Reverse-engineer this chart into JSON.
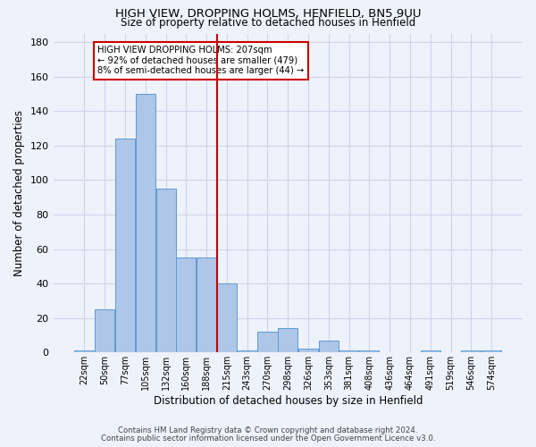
{
  "title": "HIGH VIEW, DROPPING HOLMS, HENFIELD, BN5 9UU",
  "subtitle": "Size of property relative to detached houses in Henfield",
  "xlabel": "Distribution of detached houses by size in Henfield",
  "ylabel": "Number of detached properties",
  "footer1": "Contains HM Land Registry data © Crown copyright and database right 2024.",
  "footer2": "Contains public sector information licensed under the Open Government Licence v3.0.",
  "bin_labels": [
    "22sqm",
    "50sqm",
    "77sqm",
    "105sqm",
    "132sqm",
    "160sqm",
    "188sqm",
    "215sqm",
    "243sqm",
    "270sqm",
    "298sqm",
    "326sqm",
    "353sqm",
    "381sqm",
    "408sqm",
    "436sqm",
    "464sqm",
    "491sqm",
    "519sqm",
    "546sqm",
    "574sqm"
  ],
  "bar_heights": [
    1,
    25,
    124,
    150,
    95,
    55,
    55,
    40,
    1,
    12,
    14,
    2,
    7,
    1,
    1,
    0,
    0,
    1,
    0,
    1,
    1
  ],
  "bar_color": "#aec6e8",
  "bar_edge_color": "#5b9bd5",
  "grid_color": "#cdd5e8",
  "vline_color": "#cc0000",
  "annotation_text": "HIGH VIEW DROPPING HOLMS: 207sqm\n← 92% of detached houses are smaller (479)\n8% of semi-detached houses are larger (44) →",
  "annotation_box_color": "#ffffff",
  "annotation_box_edge": "#cc0000",
  "ylim": [
    0,
    185
  ],
  "yticks": [
    0,
    20,
    40,
    60,
    80,
    100,
    120,
    140,
    160,
    180
  ],
  "bg_color": "#eef2fb"
}
